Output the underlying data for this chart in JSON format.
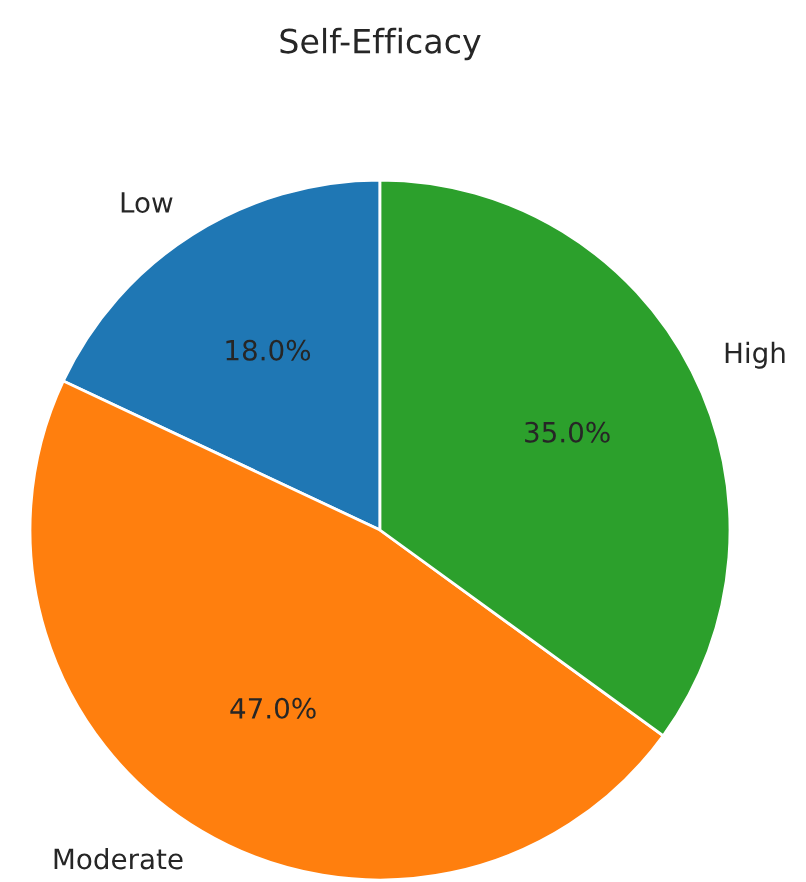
{
  "chart_data": {
    "type": "pie",
    "title": "Self-Efficacy",
    "categories": [
      "Low",
      "Moderate",
      "High"
    ],
    "values": [
      18,
      47,
      35
    ],
    "colors": [
      "#1f77b4",
      "#ff7f0e",
      "#2ca02c"
    ],
    "value_labels": [
      "18.0%",
      "47.0%",
      "35.0%"
    ]
  }
}
